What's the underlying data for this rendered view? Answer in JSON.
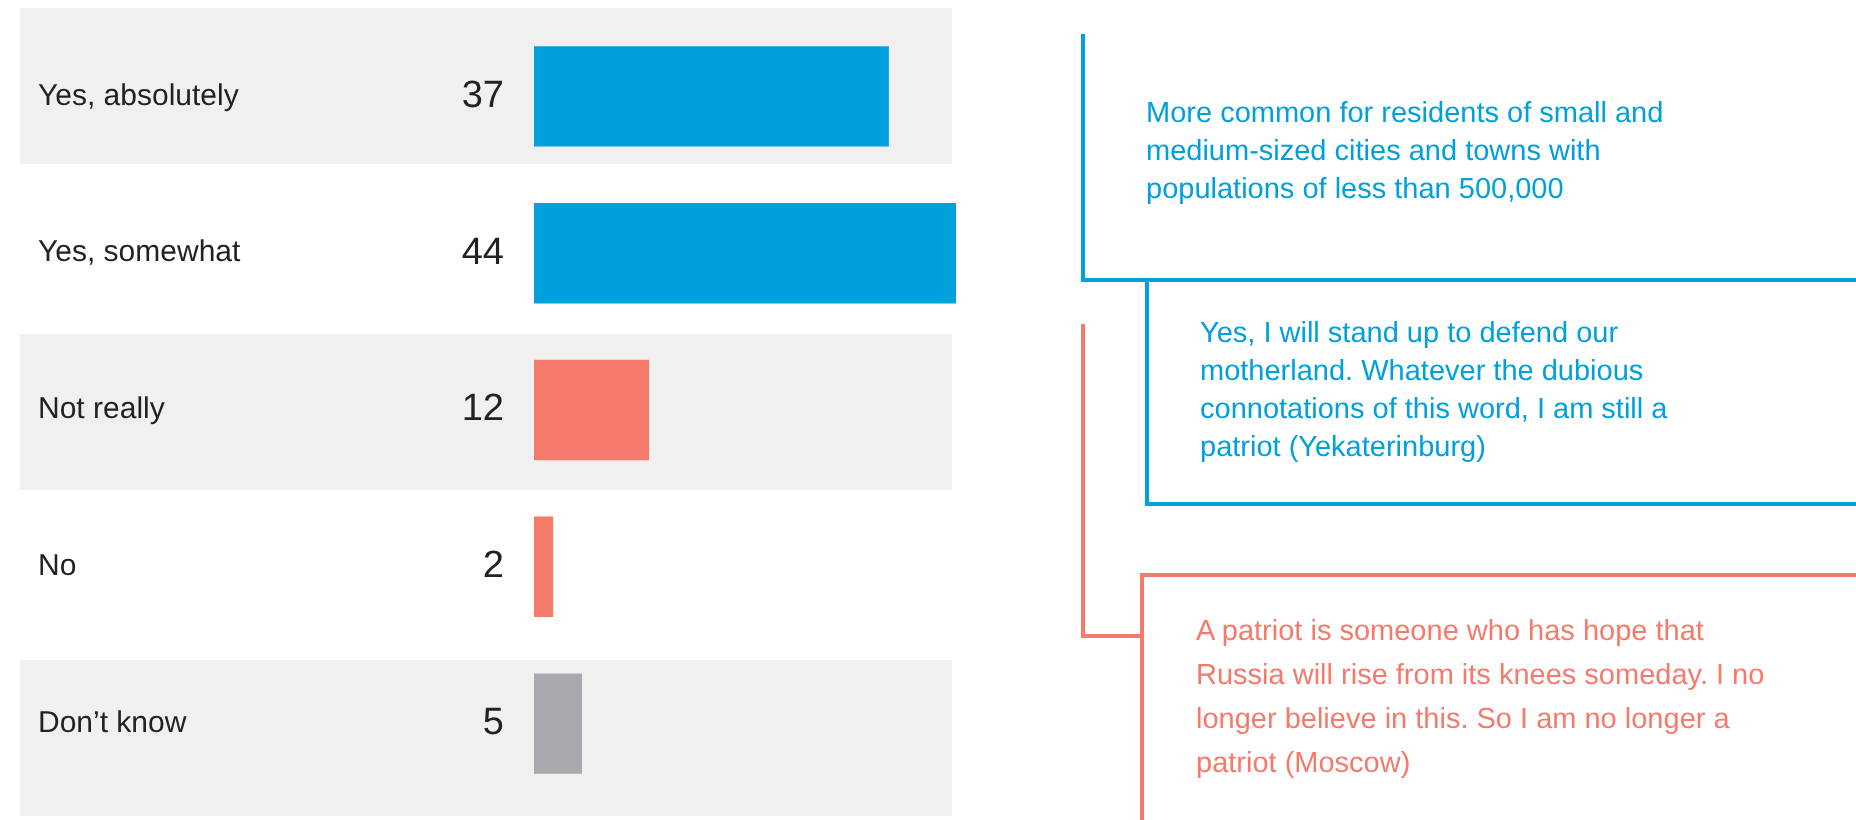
{
  "chart_data": {
    "type": "bar",
    "orientation": "horizontal",
    "categories": [
      "Yes, absolutely",
      "Yes, somewhat",
      "Not really",
      "No",
      "Don’t know"
    ],
    "values": [
      37,
      44,
      12,
      2,
      5
    ],
    "colors": [
      "#00a0dc",
      "#00a0dc",
      "#f47b6b",
      "#f47b6b",
      "#a8a9ad"
    ],
    "data_labels": true,
    "annotations": [
      "More common for residents of small and medium-sized cities and towns with populations of less than 500,000",
      "Yes, I will stand up to defend our motherland. Whatever the dubious connotations of this word, I am still a patriot (Yekaterinburg)",
      "A patriot is someone who has hope that Russia will rise from its knees someday. I no longer believe in this. So I am no longer a patriot (Moscow)"
    ]
  }
}
